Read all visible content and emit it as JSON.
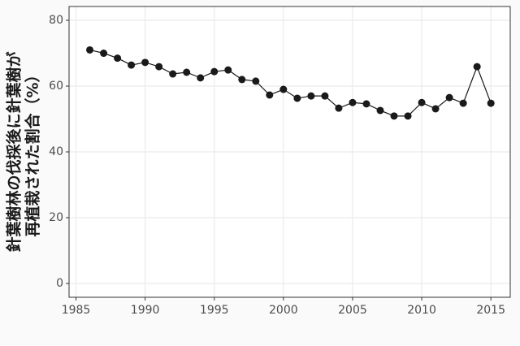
{
  "chart_data": {
    "type": "line",
    "ylabel": [
      "針葉樹林の伐採後に針葉樹が",
      "再植栽された割合（%）"
    ],
    "x": [
      1986,
      1987,
      1988,
      1989,
      1990,
      1991,
      1992,
      1993,
      1994,
      1995,
      1996,
      1997,
      1998,
      1999,
      2000,
      2001,
      2002,
      2003,
      2004,
      2005,
      2006,
      2007,
      2008,
      2009,
      2010,
      2011,
      2012,
      2013,
      2014,
      2015
    ],
    "series": [
      {
        "color": "#1a1a1a",
        "values": [
          71,
          70,
          68.5,
          66.4,
          67.2,
          65.9,
          63.7,
          64.2,
          62.5,
          64.4,
          64.9,
          62,
          61.5,
          57.3,
          59,
          56.3,
          57,
          57,
          53.3,
          55,
          54.6,
          52.6,
          50.9,
          50.9,
          55,
          53.1,
          56.5,
          54.8,
          65.9,
          54.8
        ]
      }
    ],
    "xlim": [
      1984.5,
      2016.4
    ],
    "xticks": [
      1985,
      1990,
      1995,
      2000,
      2005,
      2010,
      2015
    ],
    "ylim": [
      -4.2,
      84.2
    ],
    "yticks": [
      0,
      20,
      40,
      60,
      80
    ],
    "grid": true
  }
}
